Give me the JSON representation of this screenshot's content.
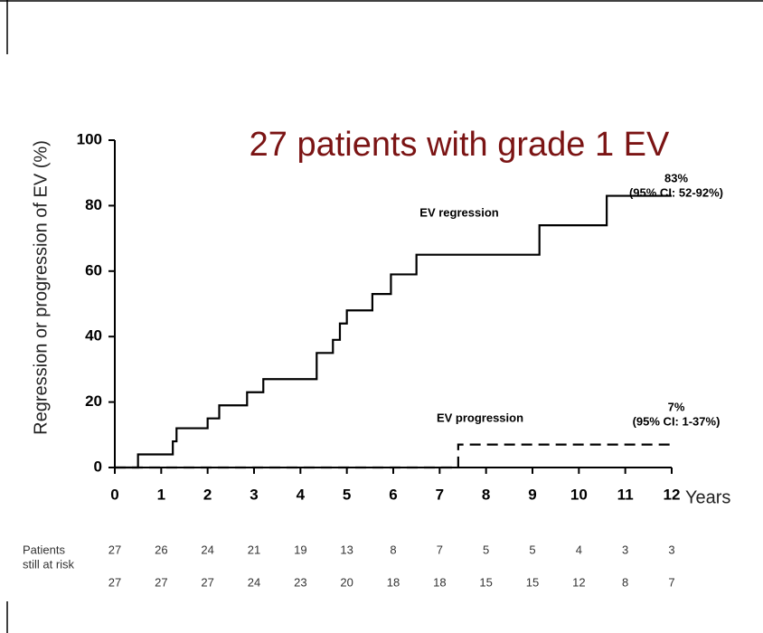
{
  "chart_data": {
    "type": "step",
    "title": "27 patients with grade 1 EV",
    "y_label": "Regression or progression of EV (%)",
    "x_label": "Years",
    "series": [
      {
        "name": "EV regression",
        "color": "#000000",
        "dash": false,
        "x": [
          0,
          0.5,
          1.25,
          1.33,
          2.0,
          2.25,
          2.85,
          3.2,
          4.35,
          4.7,
          4.85,
          5.0,
          5.55,
          5.95,
          6.5,
          9.15,
          10.6,
          12
        ],
        "values": [
          0,
          4,
          8,
          12,
          15,
          19,
          23,
          27,
          35,
          39,
          44,
          48,
          53,
          59,
          65,
          74,
          83,
          83
        ]
      },
      {
        "name": "EV progression",
        "color": "#000000",
        "dash": true,
        "x": [
          0,
          7.4,
          12
        ],
        "values": [
          0,
          7,
          7
        ]
      }
    ],
    "annotations": [
      "83%",
      "(95% CI: 52-92%)",
      "7%",
      "(95% CI: 1-37%)"
    ],
    "xlim": [
      0,
      12
    ],
    "xticks": [
      0,
      1,
      2,
      3,
      4,
      5,
      6,
      7,
      8,
      9,
      10,
      11,
      12
    ],
    "ylim": [
      0,
      100
    ],
    "yticks": [
      0,
      20,
      40,
      60,
      80,
      100
    ],
    "grid": false,
    "risk_table": {
      "label": [
        "Patients",
        "still at risk"
      ],
      "rows": [
        [
          27,
          26,
          24,
          21,
          19,
          13,
          8,
          7,
          5,
          5,
          4,
          3,
          3
        ],
        [
          27,
          27,
          27,
          24,
          23,
          20,
          18,
          18,
          15,
          15,
          12,
          8,
          7
        ]
      ]
    }
  }
}
